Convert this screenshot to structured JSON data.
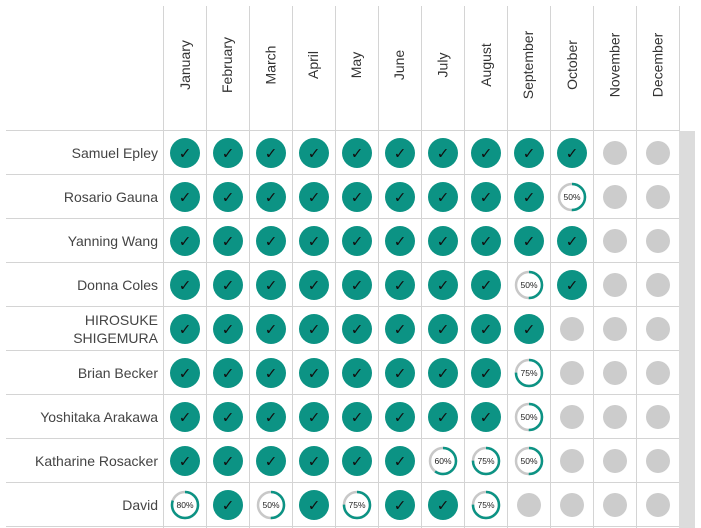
{
  "months": [
    "January",
    "February",
    "March",
    "April",
    "May",
    "June",
    "July",
    "August",
    "September",
    "October",
    "November",
    "December"
  ],
  "colors": {
    "complete": "#0c9384",
    "progress_ring": "#0c9384",
    "progress_track": "#c8c8c8",
    "pending": "#cccccc",
    "grid": "#d4d4d4",
    "scrollbar": "#dcdcdc"
  },
  "check_glyph": "✓",
  "rows": [
    {
      "name": "Samuel Epley",
      "cells": [
        "done",
        "done",
        "done",
        "done",
        "done",
        "done",
        "done",
        "done",
        "done",
        "done",
        "none",
        "none"
      ]
    },
    {
      "name": "Rosario Gauna",
      "cells": [
        "done",
        "done",
        "done",
        "done",
        "done",
        "done",
        "done",
        "done",
        "done",
        50,
        "none",
        "none"
      ]
    },
    {
      "name": "Yanning Wang",
      "cells": [
        "done",
        "done",
        "done",
        "done",
        "done",
        "done",
        "done",
        "done",
        "done",
        "done",
        "none",
        "none"
      ]
    },
    {
      "name": "Donna Coles",
      "cells": [
        "done",
        "done",
        "done",
        "done",
        "done",
        "done",
        "done",
        "done",
        50,
        "done",
        "none",
        "none"
      ]
    },
    {
      "name": "HIROSUKE SHIGEMURA",
      "cells": [
        "done",
        "done",
        "done",
        "done",
        "done",
        "done",
        "done",
        "done",
        "done",
        "none",
        "none",
        "none"
      ]
    },
    {
      "name": "Brian Becker",
      "cells": [
        "done",
        "done",
        "done",
        "done",
        "done",
        "done",
        "done",
        "done",
        75,
        "none",
        "none",
        "none"
      ]
    },
    {
      "name": "Yoshitaka Arakawa",
      "cells": [
        "done",
        "done",
        "done",
        "done",
        "done",
        "done",
        "done",
        "done",
        50,
        "none",
        "none",
        "none"
      ]
    },
    {
      "name": "Katharine Rosacker",
      "cells": [
        "done",
        "done",
        "done",
        "done",
        "done",
        "done",
        60,
        75,
        50,
        "none",
        "none",
        "none"
      ]
    },
    {
      "name": "David",
      "cells": [
        80,
        "done",
        50,
        "done",
        75,
        "done",
        "done",
        75,
        "none",
        "none",
        "none",
        "none"
      ]
    }
  ]
}
